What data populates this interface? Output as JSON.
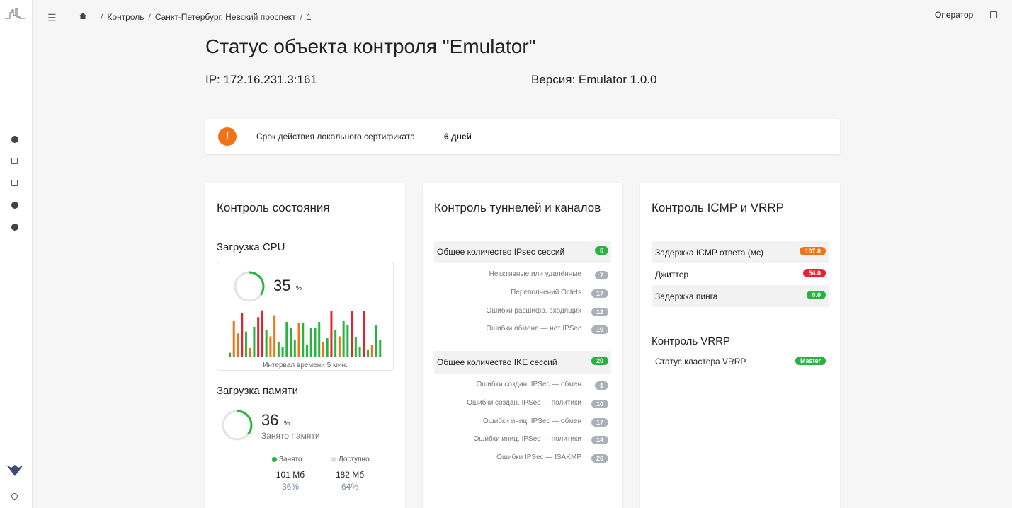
{
  "header": {
    "breadcrumb": [
      "Контроль",
      "Санкт-Петербург, Невский проспект",
      "1"
    ],
    "user": "Оператор"
  },
  "title": "Статус объекта контроля \"Emulator\"",
  "ip": "IP: 172.16.231.3:161",
  "version": "Версия: Emulator 1.0.0",
  "alert": {
    "label": "Срок действия локального сертификата",
    "value": "6 дней"
  },
  "health": {
    "title": "Контроль состояния",
    "cpu": {
      "title": "Загрузка CPU",
      "value": 35,
      "unit": "%",
      "caption": "Интервал времени 5 мин.",
      "history": [
        8,
        75,
        48,
        90,
        52,
        18,
        62,
        82,
        96,
        55,
        42,
        86,
        30,
        20,
        72,
        60,
        35,
        70,
        70,
        25,
        60,
        60,
        72,
        30,
        38,
        95,
        55,
        42,
        75,
        66,
        95,
        40,
        20,
        95,
        15,
        25,
        65,
        35
      ],
      "history_colors": [
        "#27b33e",
        "#f07415",
        "#f07415",
        "#e8222f",
        "#27b33e",
        "#f07415",
        "#27b33e",
        "#e8222f",
        "#e8222f",
        "#27b33e",
        "#f07415",
        "#f07415",
        "#27b33e",
        "#27b33e",
        "#27b33e",
        "#27b33e",
        "#27b33e",
        "#f07415",
        "#27b33e",
        "#27b33e",
        "#27b33e",
        "#27b33e",
        "#27b33e",
        "#f07415",
        "#27b33e",
        "#e8222f",
        "#27b33e",
        "#f07415",
        "#27b33e",
        "#27b33e",
        "#e8222f",
        "#27b33e",
        "#27b33e",
        "#e8222f",
        "#27b33e",
        "#f07415",
        "#27b33e",
        "#27b33e"
      ]
    },
    "memory": {
      "title": "Загрузка памяти",
      "value": 36,
      "unit": "%",
      "subtitle": "Занято памяти",
      "legend": [
        {
          "name": "Занято",
          "color": "#27b33e",
          "amount": "101 Мб",
          "share": "36%"
        },
        {
          "name": "Доступно",
          "color": "#dddddd",
          "amount": "182 Мб",
          "share": "64%"
        }
      ]
    }
  },
  "tunnels": {
    "title": "Контроль туннелей и каналов",
    "groups": [
      {
        "label": "Общее количество IPsec сессий",
        "badge": "6",
        "color": "#27b33e",
        "items": [
          {
            "label": "Неактивные или удалённые",
            "badge": "7"
          },
          {
            "label": "Переполнений Octets",
            "badge": "17"
          },
          {
            "label": "Ошибки расшифр. входящих",
            "badge": "12"
          },
          {
            "label": "Ошибки обмена — нет IPSec",
            "badge": "10"
          }
        ]
      },
      {
        "label": "Общее количество IKE сессий",
        "badge": "20",
        "color": "#27b33e",
        "items": [
          {
            "label": "Ошибки создан. IPSec — обмен",
            "badge": "1"
          },
          {
            "label": "Ошибки создан. IPSec — политики",
            "badge": "10"
          },
          {
            "label": "Ошибки иниц. IPSec — обмен",
            "badge": "17"
          },
          {
            "label": "Ошибки иниц. IPSec — политики",
            "badge": "14"
          },
          {
            "label": "Ошибки IPSec — ISAKMP",
            "badge": "26"
          }
        ]
      }
    ],
    "item_color": "#aab0b6"
  },
  "icmp": {
    "title": "Контроль ICMP и VRRP",
    "rows": [
      {
        "label": "Задержка ICMP ответа (мс)",
        "badge": "107.0",
        "color": "#f07415"
      },
      {
        "label": "Джиттер",
        "badge": "54.0",
        "color": "#e8222f"
      },
      {
        "label": "Задержка пинга",
        "badge": "0.0",
        "color": "#27b33e"
      }
    ],
    "vrrp_title": "Контроль VRRP",
    "vrrp_rows": [
      {
        "label": "Статус кластера VRRP",
        "badge": "Master",
        "color": "#27b33e"
      }
    ]
  }
}
